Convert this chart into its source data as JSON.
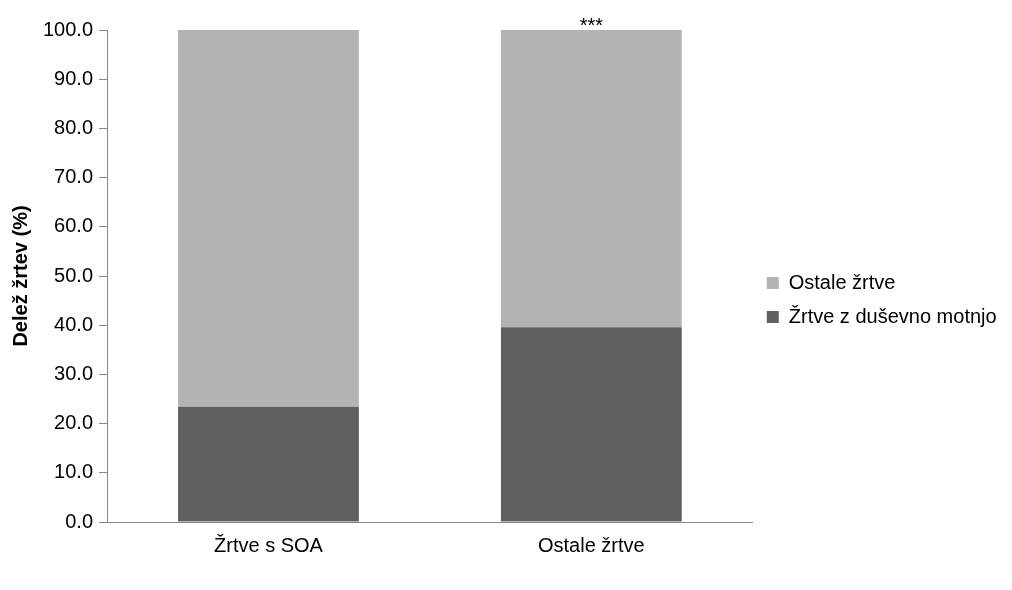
{
  "chart_data": {
    "type": "bar",
    "stacked": true,
    "ylabel": "Delež žrtev (%)",
    "categories": [
      "Žrtve s SOA",
      "Ostale žrtve"
    ],
    "series": [
      {
        "name": "Žrtve z duševno motnjo",
        "color": "#606060",
        "values": [
          23.4,
          39.6
        ]
      },
      {
        "name": "Ostale žrtve",
        "color": "#b3b3b3",
        "values": [
          76.6,
          60.4
        ]
      }
    ],
    "ylim": [
      0,
      100
    ],
    "yticks": [
      {
        "value": 0,
        "label": "0.0"
      },
      {
        "value": 10,
        "label": "10.0"
      },
      {
        "value": 20,
        "label": "20.0"
      },
      {
        "value": 30,
        "label": "30.0"
      },
      {
        "value": 40,
        "label": "40.0"
      },
      {
        "value": 50,
        "label": "50.0"
      },
      {
        "value": 60,
        "label": "60.0"
      },
      {
        "value": 70,
        "label": "70.0"
      },
      {
        "value": 80,
        "label": "80.0"
      },
      {
        "value": 90,
        "label": "90.0"
      },
      {
        "value": 100,
        "label": "100.0"
      }
    ],
    "annotations": [
      {
        "text": "***",
        "x": "Ostale žrtve",
        "y": 100
      }
    ],
    "grid": false,
    "legend": "right"
  }
}
